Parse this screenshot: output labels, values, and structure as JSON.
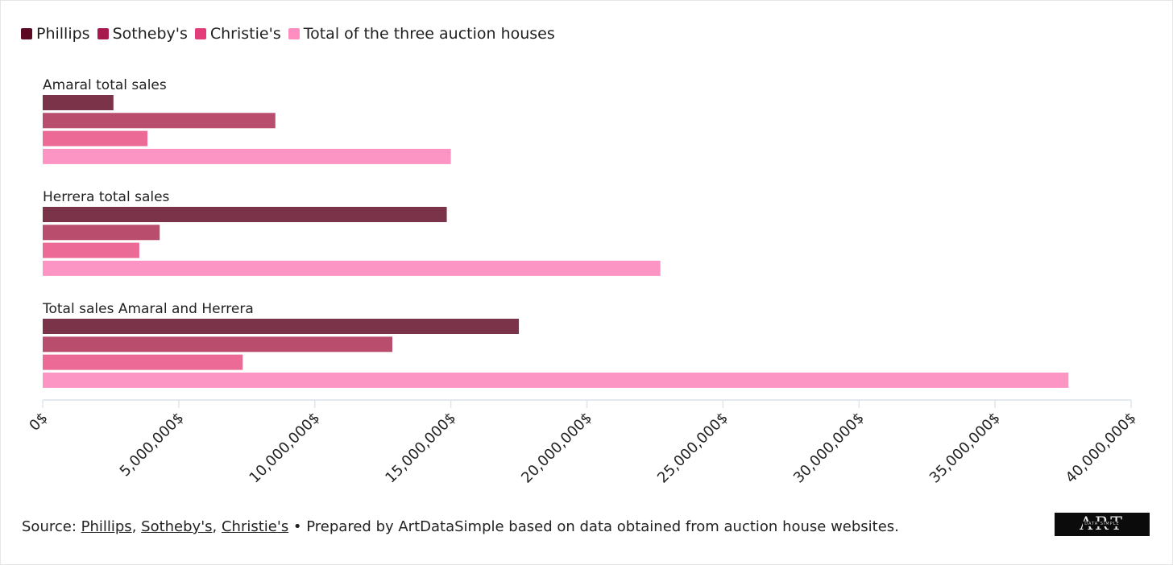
{
  "legend": [
    {
      "label": "Phillips",
      "color": "#5c0a23"
    },
    {
      "label": "Sotheby's",
      "color": "#a8194d"
    },
    {
      "label": "Christie's",
      "color": "#e23d78"
    },
    {
      "label": "Total of the three auction houses",
      "color": "#ff8ec0"
    }
  ],
  "chart_data": {
    "type": "bar",
    "orientation": "horizontal",
    "groups": [
      "Amaral total sales",
      "Herrera total sales",
      "Total sales Amaral and Herrera"
    ],
    "series": [
      {
        "name": "Phillips",
        "color": "#7a3348",
        "values": [
          2600000,
          14850000,
          17500000
        ]
      },
      {
        "name": "Sotheby's",
        "color": "#b84d6d",
        "values": [
          8550000,
          4300000,
          12850000
        ]
      },
      {
        "name": "Christie's",
        "color": "#ec6b96",
        "values": [
          3850000,
          3550000,
          7350000
        ]
      },
      {
        "name": "Total of the three auction houses",
        "color": "#fd95c4",
        "values": [
          15000000,
          22700000,
          37700000
        ]
      }
    ],
    "xlim": [
      0,
      40000000
    ],
    "ticks": [
      0,
      5000000,
      10000000,
      15000000,
      20000000,
      25000000,
      30000000,
      35000000,
      40000000
    ],
    "tick_labels": [
      "0$",
      "5,000,000$",
      "10,000,000$",
      "15,000,000$",
      "20,000,000$",
      "25,000,000$",
      "30,000,000$",
      "35,000,000$",
      "40,000,000$"
    ],
    "grid": false,
    "legend_position": "top-left"
  },
  "footer": {
    "prefix": "Source: ",
    "links": [
      "Phillips",
      "Sotheby's",
      "Christie's"
    ],
    "sep1": ", ",
    "sep2": ", ",
    "suffix": " • Prepared by ArtDataSimple based on data obtained from auction house websites."
  },
  "logo": {
    "big": "ART",
    "small": "DATA SIMPLE"
  }
}
